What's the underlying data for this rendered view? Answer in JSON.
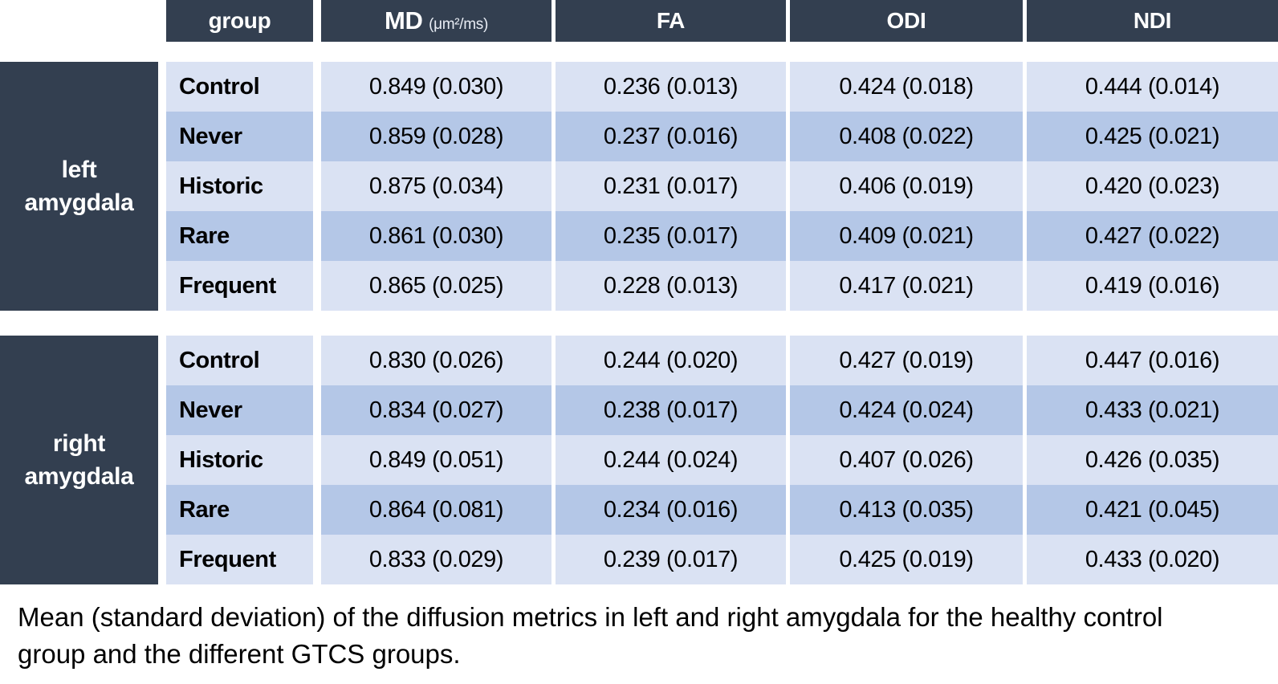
{
  "table": {
    "headers": {
      "group": "group",
      "md": "MD",
      "md_unit": "(μm²/ms)",
      "fa": "FA",
      "odi": "ODI",
      "ndi": "NDI"
    },
    "sections": [
      {
        "region": "left amygdala",
        "region_lines": {
          "0": "left",
          "1": "amygdala"
        },
        "rows": [
          {
            "group": "Control",
            "md": "0.849 (0.030)",
            "fa": "0.236 (0.013)",
            "odi": "0.424 (0.018)",
            "ndi": "0.444 (0.014)"
          },
          {
            "group": "Never",
            "md": "0.859 (0.028)",
            "fa": "0.237 (0.016)",
            "odi": "0.408 (0.022)",
            "ndi": "0.425 (0.021)"
          },
          {
            "group": "Historic",
            "md": "0.875 (0.034)",
            "fa": "0.231 (0.017)",
            "odi": "0.406 (0.019)",
            "ndi": "0.420 (0.023)"
          },
          {
            "group": "Rare",
            "md": "0.861 (0.030)",
            "fa": "0.235 (0.017)",
            "odi": "0.409 (0.021)",
            "ndi": "0.427 (0.022)"
          },
          {
            "group": "Frequent",
            "md": "0.865 (0.025)",
            "fa": "0.228 (0.013)",
            "odi": "0.417 (0.021)",
            "ndi": "0.419 (0.016)"
          }
        ]
      },
      {
        "region": "right amygdala",
        "region_lines": {
          "0": "right",
          "1": "amygdala"
        },
        "rows": [
          {
            "group": "Control",
            "md": "0.830 (0.026)",
            "fa": "0.244 (0.020)",
            "odi": "0.427 (0.019)",
            "ndi": "0.447 (0.016)"
          },
          {
            "group": "Never",
            "md": "0.834 (0.027)",
            "fa": "0.238 (0.017)",
            "odi": "0.424 (0.024)",
            "ndi": "0.433 (0.021)"
          },
          {
            "group": "Historic",
            "md": "0.849 (0.051)",
            "fa": "0.244 (0.024)",
            "odi": "0.407 (0.026)",
            "ndi": "0.426 (0.035)"
          },
          {
            "group": "Rare",
            "md": "0.864 (0.081)",
            "fa": "0.234 (0.016)",
            "odi": "0.413 (0.035)",
            "ndi": "0.421 (0.045)"
          },
          {
            "group": "Frequent",
            "md": "0.833 (0.029)",
            "fa": "0.239 (0.017)",
            "odi": "0.425 (0.019)",
            "ndi": "0.433 (0.020)"
          }
        ]
      }
    ]
  },
  "caption": "Mean (standard deviation) of the diffusion metrics in left and right amygdala for the healthy control group and the different GTCS groups.",
  "chart_data": {
    "type": "table",
    "columns": [
      "group",
      "MD (μm²/ms)",
      "FA",
      "ODI",
      "NDI"
    ],
    "row_groups": [
      "left amygdala",
      "right amygdala"
    ],
    "rows": [
      [
        "left amygdala",
        "Control",
        "0.849 (0.030)",
        "0.236 (0.013)",
        "0.424 (0.018)",
        "0.444 (0.014)"
      ],
      [
        "left amygdala",
        "Never",
        "0.859 (0.028)",
        "0.237 (0.016)",
        "0.408 (0.022)",
        "0.425 (0.021)"
      ],
      [
        "left amygdala",
        "Historic",
        "0.875 (0.034)",
        "0.231 (0.017)",
        "0.406 (0.019)",
        "0.420 (0.023)"
      ],
      [
        "left amygdala",
        "Rare",
        "0.861 (0.030)",
        "0.235 (0.017)",
        "0.409 (0.021)",
        "0.427 (0.022)"
      ],
      [
        "left amygdala",
        "Frequent",
        "0.865 (0.025)",
        "0.228 (0.013)",
        "0.417 (0.021)",
        "0.419 (0.016)"
      ],
      [
        "right amygdala",
        "Control",
        "0.830 (0.026)",
        "0.244 (0.020)",
        "0.427 (0.019)",
        "0.447 (0.016)"
      ],
      [
        "right amygdala",
        "Never",
        "0.834 (0.027)",
        "0.238 (0.017)",
        "0.424 (0.024)",
        "0.433 (0.021)"
      ],
      [
        "right amygdala",
        "Historic",
        "0.849 (0.051)",
        "0.244 (0.024)",
        "0.407 (0.026)",
        "0.426 (0.035)"
      ],
      [
        "right amygdala",
        "Rare",
        "0.864 (0.081)",
        "0.234 (0.016)",
        "0.413 (0.035)",
        "0.421 (0.045)"
      ],
      [
        "right amygdala",
        "Frequent",
        "0.833 (0.029)",
        "0.239 (0.017)",
        "0.425 (0.019)",
        "0.433 (0.020)"
      ]
    ],
    "title": "",
    "caption": "Mean (standard deviation) of the diffusion metrics in left and right amygdala for the healthy control group and the different GTCS groups."
  },
  "colors": {
    "header_dark": "#333F50",
    "row_light": "#DAE2F3",
    "row_dark": "#B4C7E7",
    "header_text": "#FFFFFF",
    "body_text": "#000000"
  }
}
